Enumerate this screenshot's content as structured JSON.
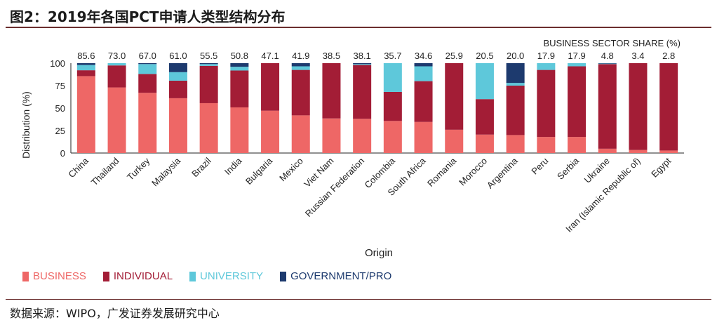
{
  "header": {
    "title": "图2：2019年各国PCT申请人类型结构分布"
  },
  "footer": {
    "source": "数据来源：WIPO，广发证券发展研究中心"
  },
  "colors": {
    "business": "#ee6766",
    "individual": "#a31d36",
    "university": "#5ec8da",
    "government": "#1d3a6e"
  },
  "chart_data": {
    "type": "bar",
    "stacked": true,
    "title": "",
    "xlabel": "Origin",
    "ylabel": "Distribution (%)",
    "ylim": [
      0,
      100
    ],
    "yticks": [
      0,
      25,
      50,
      75,
      100
    ],
    "top_label_title": "BUSINESS SECTOR SHARE (%)",
    "top_labels": [
      "85.6",
      "73.0",
      "67.0",
      "61.0",
      "55.5",
      "50.8",
      "47.1",
      "41.9",
      "38.5",
      "38.1",
      "35.7",
      "34.6",
      "25.9",
      "20.5",
      "20.0",
      "17.9",
      "17.9",
      "4.8",
      "3.4",
      "2.8"
    ],
    "categories": [
      "China",
      "Thailand",
      "Turkey",
      "Malaysia",
      "Brazil",
      "India",
      "Bulgaria",
      "Mexico",
      "Viet Nam",
      "Russian Federation",
      "Colombia",
      "South Africa",
      "Romania",
      "Morocco",
      "Argentina",
      "Peru",
      "Serbia",
      "Ukraine",
      "Iran (Islamic Republic of)",
      "Egypt"
    ],
    "series": [
      {
        "name": "BUSINESS",
        "values": [
          85.6,
          73.0,
          67.0,
          61.0,
          55.5,
          50.8,
          47.1,
          41.9,
          38.5,
          38.1,
          35.7,
          34.6,
          25.9,
          20.5,
          20.0,
          17.9,
          17.9,
          4.8,
          3.4,
          2.8
        ]
      },
      {
        "name": "INDIVIDUAL",
        "values": [
          6.5,
          24.5,
          21.0,
          19.5,
          41.5,
          41.0,
          52.9,
          50.6,
          61.5,
          59.9,
          32.3,
          45.4,
          74.1,
          39.5,
          55.0,
          74.6,
          78.6,
          94.2,
          96.6,
          97.2
        ]
      },
      {
        "name": "UNIVERSITY",
        "values": [
          5.9,
          2.5,
          11.0,
          9.5,
          2.0,
          4.2,
          0,
          4.0,
          0,
          1.0,
          32.0,
          16.5,
          0,
          40.0,
          3.0,
          7.5,
          3.5,
          0.5,
          0,
          0
        ]
      },
      {
        "name": "GOVERNMENT/PRO",
        "values": [
          2.0,
          0,
          1.0,
          10.0,
          1.0,
          4.0,
          0,
          3.5,
          0,
          1.0,
          0,
          3.5,
          0,
          0,
          22.0,
          0,
          0,
          0.5,
          0,
          0
        ]
      }
    ]
  }
}
